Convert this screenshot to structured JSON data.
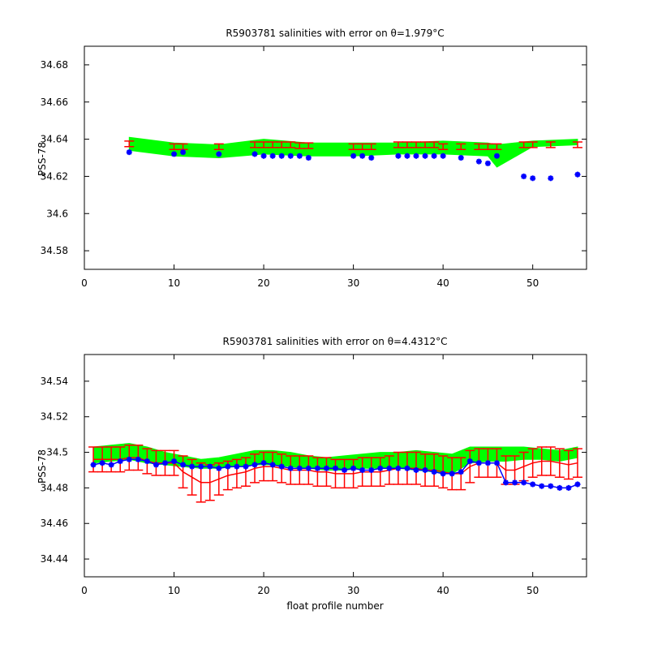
{
  "chart_data": [
    {
      "type": "line",
      "title_text": "R5903781 salinities with error on θ=1.979",
      "title_unit": "°C",
      "ylabel": "PSS-78",
      "xlabel": "",
      "xlim": [
        0,
        56
      ],
      "ylim": [
        34.57,
        34.69
      ],
      "xticks": [
        0,
        10,
        20,
        30,
        40,
        50
      ],
      "yticks": [
        34.58,
        34.6,
        34.62,
        34.64,
        34.66,
        34.68
      ],
      "ytick_labels": [
        "34.58",
        "34.6",
        "34.62",
        "34.64",
        "34.66",
        "34.68"
      ],
      "colors": {
        "band": "#00ff00",
        "error": "#ff0000",
        "observed": "#0000ff"
      },
      "band": {
        "x": [
          5,
          10,
          15,
          20,
          25,
          30,
          35,
          40,
          45,
          46,
          50,
          55
        ],
        "upper": [
          34.641,
          34.638,
          34.637,
          34.64,
          34.638,
          34.638,
          34.638,
          34.639,
          34.638,
          34.637,
          34.639,
          34.64
        ],
        "lower": [
          34.634,
          34.631,
          34.63,
          34.632,
          34.631,
          34.631,
          34.632,
          34.632,
          34.631,
          34.625,
          34.636,
          34.637
        ]
      },
      "errorbars": {
        "x": [
          5,
          10,
          11,
          15,
          19,
          20,
          21,
          22,
          23,
          24,
          25,
          30,
          31,
          32,
          35,
          36,
          37,
          38,
          39,
          40,
          42,
          44,
          45,
          46,
          49,
          50,
          52,
          55
        ],
        "y": [
          34.6375,
          34.636,
          34.636,
          34.636,
          34.637,
          34.637,
          34.637,
          34.637,
          34.637,
          34.6365,
          34.6365,
          34.636,
          34.636,
          34.636,
          34.637,
          34.637,
          34.637,
          34.637,
          34.637,
          34.636,
          34.636,
          34.636,
          34.636,
          34.636,
          34.637,
          34.637,
          34.637,
          34.637
        ],
        "err": [
          0.0015,
          0.0015,
          0.0015,
          0.0015,
          0.0015,
          0.0015,
          0.0015,
          0.0015,
          0.0015,
          0.0015,
          0.0015,
          0.0015,
          0.0015,
          0.0015,
          0.0015,
          0.0015,
          0.0015,
          0.0015,
          0.0015,
          0.0015,
          0.0015,
          0.0015,
          0.0015,
          0.0015,
          0.0015,
          0.0015,
          0.0015,
          0.0015
        ]
      },
      "observed": {
        "x": [
          5,
          10,
          11,
          15,
          19,
          20,
          21,
          22,
          23,
          24,
          25,
          30,
          31,
          32,
          35,
          36,
          37,
          38,
          39,
          40,
          42,
          44,
          45,
          46,
          49,
          50,
          52,
          55
        ],
        "y": [
          34.633,
          34.632,
          34.633,
          34.632,
          34.632,
          34.631,
          34.631,
          34.631,
          34.631,
          34.631,
          34.63,
          34.631,
          34.631,
          34.63,
          34.631,
          34.631,
          34.631,
          34.631,
          34.631,
          34.631,
          34.63,
          34.628,
          34.627,
          34.631,
          34.62,
          34.619,
          34.619,
          34.621
        ]
      }
    },
    {
      "type": "line",
      "title_text": "R5903781 salinities with error on θ=4.4312",
      "title_unit": "°C",
      "ylabel": "PSS-78",
      "xlabel": "float profile number",
      "xlim": [
        0,
        56
      ],
      "ylim": [
        34.43,
        34.555
      ],
      "xticks": [
        0,
        10,
        20,
        30,
        40,
        50
      ],
      "yticks": [
        34.44,
        34.46,
        34.48,
        34.5,
        34.52,
        34.54
      ],
      "ytick_labels": [
        "34.44",
        "34.46",
        "34.48",
        "34.5",
        "34.52",
        "34.54"
      ],
      "colors": {
        "band": "#00ff00",
        "error": "#ff0000",
        "observed": "#0000ff"
      },
      "band": {
        "x": [
          1,
          3,
          5,
          7,
          9,
          11,
          13,
          15,
          17,
          19,
          21,
          23,
          25,
          27,
          29,
          31,
          33,
          35,
          37,
          39,
          41,
          43,
          45,
          47,
          49,
          51,
          53,
          55
        ],
        "upper": [
          34.503,
          34.504,
          34.505,
          34.503,
          34.5,
          34.498,
          34.496,
          34.497,
          34.499,
          34.501,
          34.501,
          34.5,
          34.498,
          34.497,
          34.498,
          34.499,
          34.5,
          34.5,
          34.501,
          34.5,
          34.499,
          34.503,
          34.503,
          34.503,
          34.503,
          34.502,
          34.501,
          34.503
        ],
        "lower": [
          34.494,
          34.495,
          34.496,
          34.494,
          34.493,
          34.492,
          34.491,
          34.491,
          34.492,
          34.493,
          34.493,
          34.492,
          34.491,
          34.49,
          34.49,
          34.491,
          34.491,
          34.491,
          34.49,
          34.489,
          34.488,
          34.494,
          34.495,
          34.495,
          34.496,
          34.496,
          34.495,
          34.497
        ]
      },
      "errorbars": {
        "x": [
          1,
          2,
          3,
          4,
          5,
          6,
          7,
          8,
          9,
          10,
          11,
          12,
          13,
          14,
          15,
          16,
          17,
          18,
          19,
          20,
          21,
          22,
          23,
          24,
          25,
          26,
          27,
          28,
          29,
          30,
          31,
          32,
          33,
          34,
          35,
          36,
          37,
          38,
          39,
          40,
          41,
          42,
          43,
          44,
          45,
          46,
          47,
          48,
          49,
          50,
          51,
          52,
          53,
          54,
          55
        ],
        "y": [
          34.496,
          34.496,
          34.496,
          34.496,
          34.497,
          34.497,
          34.495,
          34.494,
          34.494,
          34.494,
          34.489,
          34.486,
          34.483,
          34.483,
          34.485,
          34.487,
          34.488,
          34.489,
          34.491,
          34.492,
          34.492,
          34.491,
          34.49,
          34.49,
          34.49,
          34.489,
          34.489,
          34.488,
          34.488,
          34.488,
          34.489,
          34.489,
          34.489,
          34.49,
          34.491,
          34.491,
          34.491,
          34.49,
          34.49,
          34.489,
          34.488,
          34.488,
          34.492,
          34.494,
          34.494,
          34.494,
          34.49,
          34.49,
          34.492,
          34.494,
          34.495,
          34.495,
          34.494,
          34.493,
          34.494
        ],
        "err": [
          0.007,
          0.007,
          0.007,
          0.007,
          0.007,
          0.007,
          0.007,
          0.007,
          0.007,
          0.007,
          0.009,
          0.01,
          0.011,
          0.01,
          0.009,
          0.008,
          0.008,
          0.008,
          0.008,
          0.008,
          0.008,
          0.008,
          0.008,
          0.008,
          0.008,
          0.008,
          0.008,
          0.008,
          0.008,
          0.008,
          0.008,
          0.008,
          0.008,
          0.008,
          0.009,
          0.009,
          0.009,
          0.009,
          0.009,
          0.009,
          0.009,
          0.009,
          0.009,
          0.008,
          0.008,
          0.008,
          0.008,
          0.008,
          0.008,
          0.008,
          0.008,
          0.008,
          0.008,
          0.008,
          0.008
        ]
      },
      "observed": {
        "x": [
          1,
          2,
          3,
          4,
          5,
          6,
          7,
          8,
          9,
          10,
          11,
          12,
          13,
          14,
          15,
          16,
          17,
          18,
          19,
          20,
          21,
          22,
          23,
          24,
          25,
          26,
          27,
          28,
          29,
          30,
          31,
          32,
          33,
          34,
          35,
          36,
          37,
          38,
          39,
          40,
          41,
          42,
          43,
          44,
          45,
          46,
          47,
          48,
          49,
          50,
          51,
          52,
          53,
          54,
          55
        ],
        "y": [
          34.493,
          34.494,
          34.493,
          34.495,
          34.496,
          34.496,
          34.495,
          34.493,
          34.494,
          34.495,
          34.493,
          34.492,
          34.492,
          34.492,
          34.491,
          34.492,
          34.492,
          34.492,
          34.493,
          34.494,
          34.493,
          34.492,
          34.491,
          34.491,
          34.491,
          34.491,
          34.491,
          34.491,
          34.49,
          34.491,
          34.49,
          34.49,
          34.491,
          34.491,
          34.491,
          34.491,
          34.49,
          34.49,
          34.489,
          34.488,
          34.488,
          34.489,
          34.495,
          34.494,
          34.494,
          34.494,
          34.483,
          34.483,
          34.483,
          34.482,
          34.481,
          34.481,
          34.48,
          34.48,
          34.482
        ]
      }
    }
  ]
}
